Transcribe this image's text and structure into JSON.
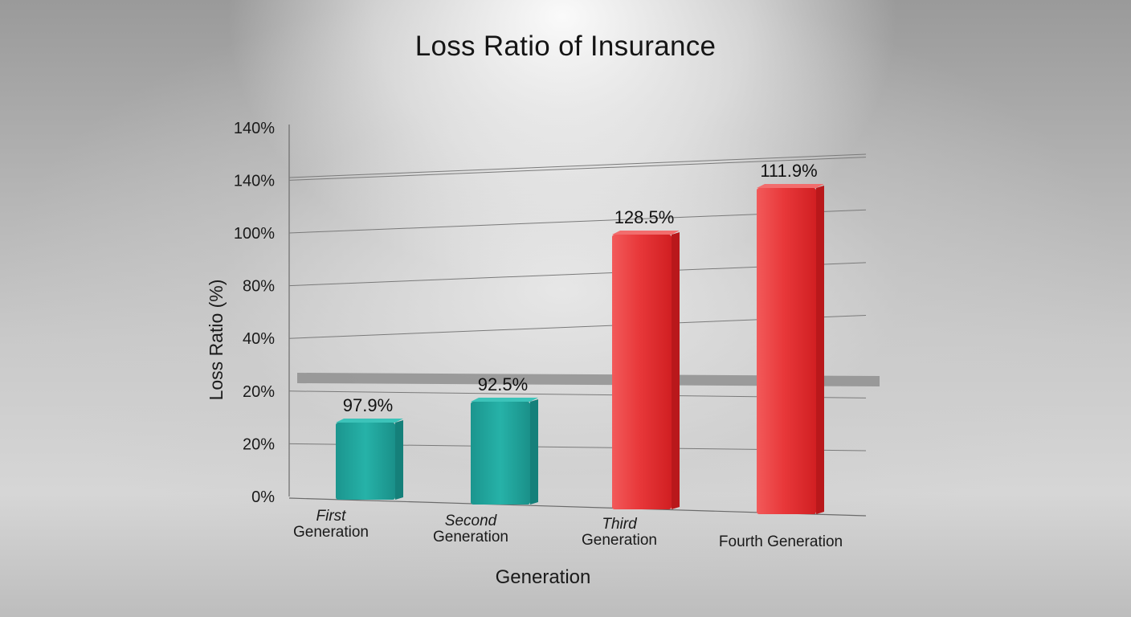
{
  "chart_data": {
    "type": "bar",
    "title": "Loss Ratio of Insurance",
    "xlabel": "Generation",
    "ylabel": "Loss Ratio (%)",
    "y_tick_labels": [
      "0%",
      "20%",
      "20%",
      "40%",
      "80%",
      "100%",
      "140%",
      "140%"
    ],
    "categories": [
      [
        "First",
        "Generation"
      ],
      [
        "Second",
        "Generation"
      ],
      [
        "Third",
        "Generation"
      ],
      [
        "Fourth Generation"
      ]
    ],
    "values": [
      97.9,
      92.5,
      128.5,
      111.9
    ],
    "data_labels": [
      "97.9%",
      "92.5%",
      "128.5%",
      "111.9%"
    ],
    "bar_colors": [
      "#1fa39b",
      "#1fa39b",
      "#e02b2b",
      "#e02b2b"
    ],
    "reference_band": true,
    "grid": true
  }
}
